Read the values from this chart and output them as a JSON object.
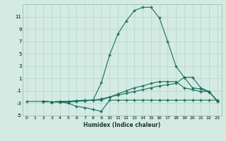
{
  "xlabel": "Humidex (Indice chaleur)",
  "background_color": "#d4ebe3",
  "grid_color": "#b8d8ce",
  "line_color": "#1a6e5e",
  "xlim": [
    -0.5,
    23.5
  ],
  "ylim": [
    -5,
    13
  ],
  "xticks": [
    0,
    1,
    2,
    3,
    4,
    5,
    6,
    7,
    8,
    9,
    10,
    11,
    12,
    13,
    14,
    15,
    16,
    17,
    18,
    19,
    20,
    21,
    22,
    23
  ],
  "yticks": [
    -5,
    -3,
    -1,
    1,
    3,
    5,
    7,
    9,
    11
  ],
  "curve1_x": [
    0,
    2,
    3,
    4,
    5,
    6,
    7,
    8,
    9,
    10,
    11,
    12,
    13,
    14,
    15,
    16,
    17,
    18,
    19,
    20,
    21,
    22,
    23
  ],
  "curve1_y": [
    -2.7,
    -2.7,
    -2.8,
    -2.8,
    -2.8,
    -2.7,
    -2.6,
    -2.5,
    -2.3,
    -2.0,
    -1.7,
    -1.4,
    -1.1,
    -0.8,
    -0.5,
    -0.2,
    0.0,
    0.2,
    1.2,
    1.2,
    -0.5,
    -1.1,
    -2.7
  ],
  "curve2_x": [
    2,
    3,
    4,
    5,
    6,
    7,
    8,
    9,
    10,
    11,
    12,
    13,
    14,
    15,
    16,
    17,
    18,
    19,
    20,
    21,
    22,
    23
  ],
  "curve2_y": [
    -2.7,
    -2.8,
    -2.8,
    -3.0,
    -3.5,
    -3.7,
    -4.0,
    -4.3,
    -2.5,
    -2.5,
    -2.5,
    -2.5,
    -2.5,
    -2.5,
    -2.5,
    -2.5,
    -2.5,
    -2.5,
    -2.5,
    -2.5,
    -2.5,
    -2.5
  ],
  "curve3_x": [
    2,
    3,
    4,
    5,
    6,
    7,
    8,
    9,
    10,
    11,
    12,
    13,
    14,
    15,
    16,
    17,
    18,
    19,
    20,
    21,
    22,
    23
  ],
  "curve3_y": [
    -2.7,
    -2.8,
    -2.7,
    -2.7,
    -2.6,
    -2.5,
    -2.5,
    0.3,
    4.8,
    8.2,
    10.3,
    12.0,
    12.5,
    12.5,
    10.8,
    7.0,
    3.0,
    1.2,
    -0.5,
    -0.7,
    -1.2,
    -2.6
  ],
  "curve4_x": [
    2,
    3,
    4,
    5,
    6,
    7,
    8,
    9,
    10,
    11,
    12,
    13,
    14,
    15,
    16,
    17,
    18,
    19,
    20,
    21,
    22,
    23
  ],
  "curve4_y": [
    -2.7,
    -2.8,
    -2.7,
    -2.7,
    -2.6,
    -2.6,
    -2.5,
    -2.5,
    -2.0,
    -1.5,
    -1.0,
    -0.5,
    -0.2,
    0.2,
    0.5,
    0.5,
    0.5,
    -0.5,
    -0.8,
    -1.1,
    -1.1,
    -2.6
  ]
}
